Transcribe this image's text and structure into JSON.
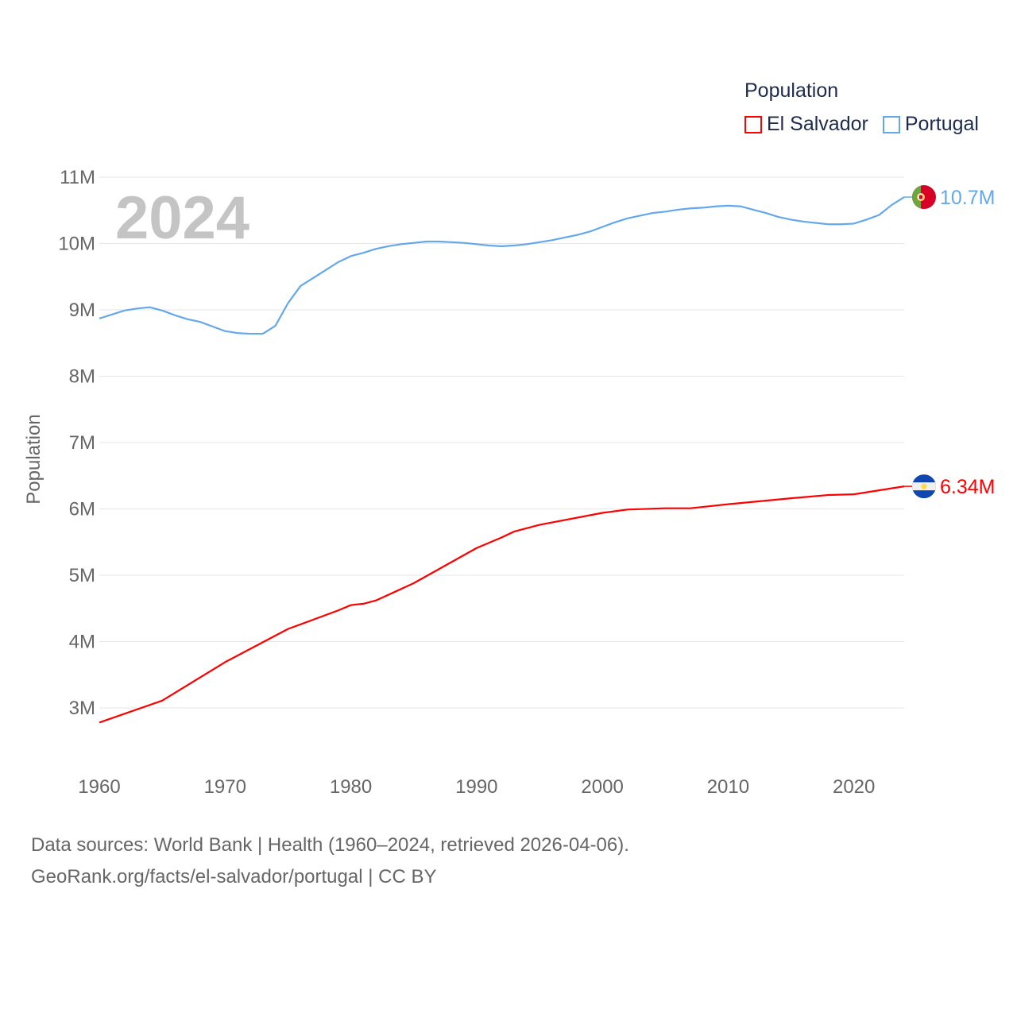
{
  "chart_data": {
    "type": "line",
    "watermark_year": "2024",
    "ylabel": "Population",
    "xlabel": "",
    "xlim": [
      1960,
      2024
    ],
    "ylim": [
      3000000,
      11000000
    ],
    "yticks": [
      3000000,
      4000000,
      5000000,
      6000000,
      7000000,
      8000000,
      9000000,
      10000000,
      11000000
    ],
    "ytick_labels": [
      "3M",
      "4M",
      "5M",
      "6M",
      "7M",
      "8M",
      "9M",
      "10M",
      "11M"
    ],
    "xticks": [
      1960,
      1970,
      1980,
      1990,
      2000,
      2010,
      2020
    ],
    "xtick_labels": [
      "1960",
      "1970",
      "1980",
      "1990",
      "2000",
      "2010",
      "2020"
    ],
    "grid": true,
    "legend": {
      "title": "Population",
      "placement": "top-right"
    },
    "series": [
      {
        "name": "El Salvador",
        "color": "#ff0000",
        "end_label": "6.34M",
        "flag": "el-salvador-flag",
        "x": [
          1960,
          1965,
          1970,
          1975,
          1979,
          1980,
          1981,
          1982,
          1985,
          1990,
          1992,
          1993,
          1995,
          2000,
          2002,
          2005,
          2007,
          2010,
          2015,
          2018,
          2020,
          2024
        ],
        "y": [
          2.78,
          3.11,
          3.69,
          4.19,
          4.47,
          4.55,
          4.57,
          4.62,
          4.88,
          5.41,
          5.57,
          5.66,
          5.76,
          5.94,
          5.99,
          6.01,
          6.01,
          6.07,
          6.16,
          6.21,
          6.22,
          6.34
        ]
      },
      {
        "name": "Portugal",
        "color": "#64a8ec",
        "end_label": "10.7M",
        "flag": "portugal-flag",
        "x": [
          1960,
          1962,
          1963,
          1964,
          1965,
          1966,
          1967,
          1968,
          1969,
          1970,
          1971,
          1972,
          1973,
          1974,
          1975,
          1976,
          1977,
          1978,
          1979,
          1980,
          1981,
          1982,
          1983,
          1984,
          1985,
          1986,
          1987,
          1988,
          1989,
          1990,
          1991,
          1992,
          1993,
          1994,
          1995,
          1996,
          1997,
          1998,
          1999,
          2000,
          2001,
          2002,
          2003,
          2004,
          2005,
          2006,
          2007,
          2008,
          2009,
          2010,
          2011,
          2012,
          2013,
          2014,
          2015,
          2016,
          2017,
          2018,
          2019,
          2020,
          2021,
          2022,
          2023,
          2024
        ],
        "y": [
          8.87,
          8.99,
          9.02,
          9.04,
          8.99,
          8.92,
          8.86,
          8.82,
          8.75,
          8.68,
          8.65,
          8.64,
          8.64,
          8.76,
          9.1,
          9.36,
          9.48,
          9.6,
          9.72,
          9.81,
          9.86,
          9.92,
          9.96,
          9.99,
          10.01,
          10.03,
          10.03,
          10.02,
          10.01,
          9.99,
          9.97,
          9.96,
          9.97,
          9.99,
          10.02,
          10.05,
          10.09,
          10.13,
          10.18,
          10.25,
          10.32,
          10.38,
          10.42,
          10.46,
          10.48,
          10.51,
          10.53,
          10.54,
          10.56,
          10.57,
          10.56,
          10.51,
          10.46,
          10.4,
          10.36,
          10.33,
          10.31,
          10.29,
          10.29,
          10.3,
          10.36,
          10.43,
          10.58,
          10.7
        ]
      }
    ]
  },
  "footer": {
    "line1": "Data sources: World Bank | Health (1960–2024, retrieved 2026-04-06).",
    "line2": "GeoRank.org/facts/el-salvador/portugal | CC BY"
  }
}
